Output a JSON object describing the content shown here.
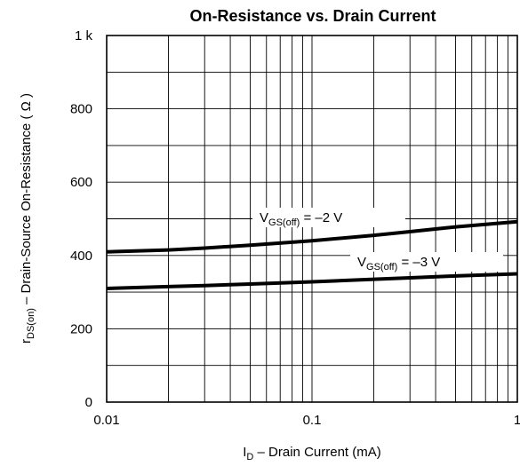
{
  "chart_data": {
    "type": "line",
    "title": "On-Resistance vs. Drain Current",
    "xlabel": {
      "pre": "I",
      "sub": "D",
      "post": " – Drain Current (mA)"
    },
    "ylabel": {
      "pre": "r",
      "sub": "DS(on)",
      "post": " – Drain-Source On-Resistance ( Ω )"
    },
    "x_scale": "log",
    "xlim": [
      0.01,
      1
    ],
    "ylim": [
      0,
      1000
    ],
    "x_ticks": [
      {
        "value": 0.01,
        "label": "0.01"
      },
      {
        "value": 0.1,
        "label": "0.1"
      },
      {
        "value": 1,
        "label": "1"
      }
    ],
    "y_ticks": [
      {
        "value": 0,
        "label": "0"
      },
      {
        "value": 200,
        "label": "200"
      },
      {
        "value": 400,
        "label": "400"
      },
      {
        "value": 600,
        "label": "600"
      },
      {
        "value": 800,
        "label": "800"
      },
      {
        "value": 1000,
        "label": "1 k"
      }
    ],
    "grid": true,
    "series": [
      {
        "name": {
          "pre": "V",
          "sub": "GS(off)",
          "post": " = –2 V"
        },
        "x": [
          0.01,
          0.02,
          0.03,
          0.05,
          0.1,
          0.2,
          0.3,
          0.5,
          1
        ],
        "y": [
          410,
          415,
          420,
          428,
          440,
          455,
          465,
          478,
          492
        ]
      },
      {
        "name": {
          "pre": "V",
          "sub": "GS(off)",
          "post": " = –3 V"
        },
        "x": [
          0.01,
          0.02,
          0.03,
          0.05,
          0.1,
          0.2,
          0.3,
          0.5,
          1
        ],
        "y": [
          310,
          315,
          318,
          322,
          328,
          335,
          339,
          344,
          350
        ]
      }
    ]
  }
}
